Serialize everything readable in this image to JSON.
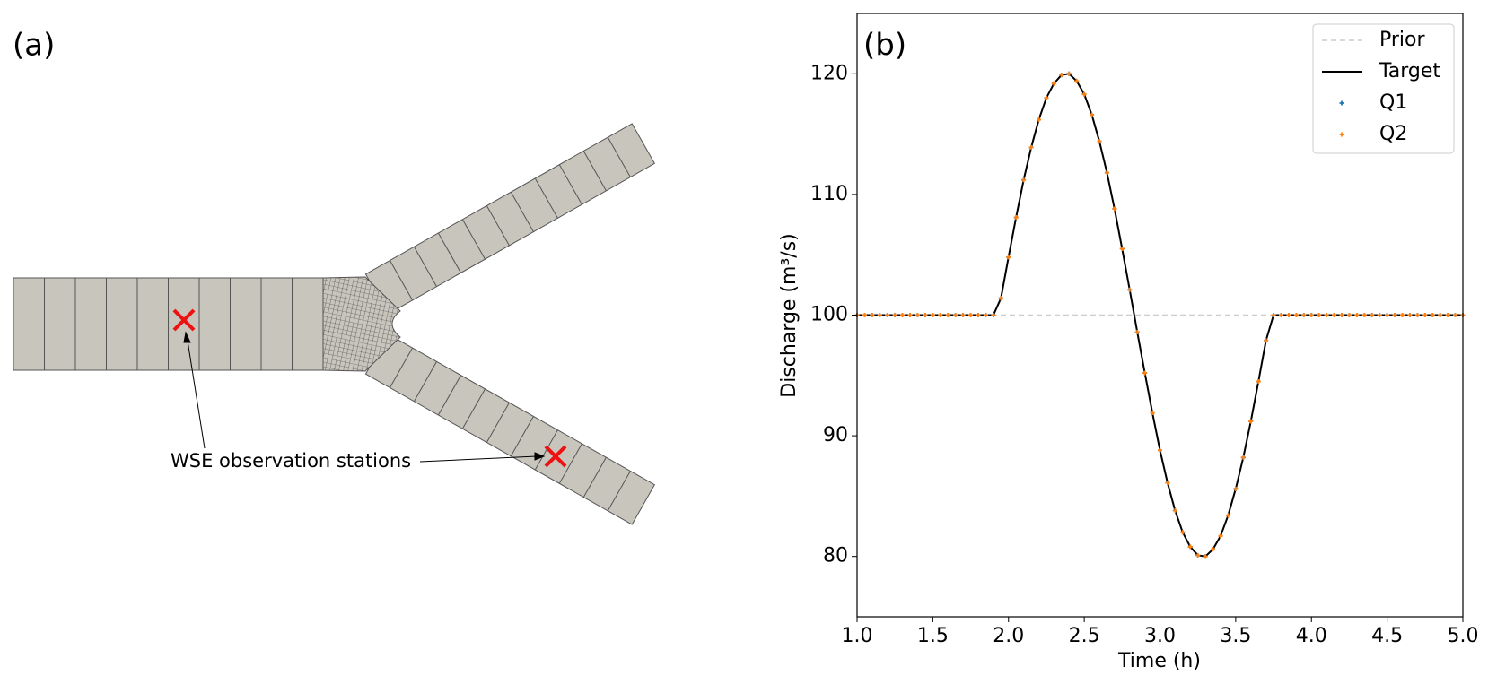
{
  "panel_a": {
    "label": "(a)",
    "annotation": "WSE observation stations"
  },
  "chart_data": {
    "type": "line",
    "panel_label": "(b)",
    "x_label": "Time (h)",
    "y_label": "Discharge (m³/s)",
    "x": [
      1,
      1.05,
      1.1,
      1.15,
      1.2,
      1.25,
      1.3,
      1.35,
      1.4,
      1.45,
      1.5,
      1.55,
      1.6,
      1.65,
      1.7,
      1.75,
      1.8,
      1.85,
      1.9,
      1.95,
      2,
      2.05,
      2.1,
      2.15,
      2.2,
      2.25,
      2.3,
      2.35,
      2.4,
      2.45,
      2.5,
      2.55,
      2.6,
      2.65,
      2.7,
      2.75,
      2.8,
      2.85,
      2.9,
      2.95,
      3,
      3.05,
      3.1,
      3.15,
      3.2,
      3.25,
      3.3,
      3.35,
      3.4,
      3.45,
      3.5,
      3.55,
      3.6,
      3.65,
      3.7,
      3.75,
      3.8,
      3.85,
      3.9,
      3.95,
      4,
      4.05,
      4.1,
      4.15,
      4.2,
      4.25,
      4.3,
      4.35,
      4.4,
      4.45,
      4.5,
      4.55,
      4.6,
      4.65,
      4.7,
      4.75,
      4.8,
      4.85,
      4.9,
      4.95,
      5
    ],
    "series": [
      {
        "name": "Prior",
        "color": "#cccccc",
        "mode": "line",
        "dashed": true,
        "values": [
          100,
          100,
          100,
          100,
          100,
          100,
          100,
          100,
          100,
          100,
          100,
          100,
          100,
          100,
          100,
          100,
          100,
          100,
          100,
          100,
          100,
          100,
          100,
          100,
          100,
          100,
          100,
          100,
          100,
          100,
          100,
          100,
          100,
          100,
          100,
          100,
          100,
          100,
          100,
          100,
          100,
          100,
          100,
          100,
          100,
          100,
          100,
          100,
          100,
          100,
          100,
          100,
          100,
          100,
          100,
          100,
          100,
          100,
          100,
          100,
          100,
          100,
          100,
          100,
          100,
          100,
          100,
          100,
          100,
          100,
          100,
          100,
          100,
          100,
          100,
          100,
          100,
          100,
          100,
          100,
          100
        ]
      },
      {
        "name": "Target",
        "color": "#000000",
        "mode": "line",
        "dashed": false,
        "values": [
          100,
          100,
          100,
          100,
          100,
          100,
          100,
          100,
          100,
          100,
          100,
          100,
          100,
          100,
          100,
          100,
          100,
          100,
          100,
          101.4,
          104.8,
          108.1,
          111.2,
          113.9,
          116.2,
          118,
          119.2,
          119.9,
          120,
          119.4,
          118.3,
          116.6,
          114.4,
          111.8,
          108.8,
          105.5,
          102.1,
          98.6,
          95.2,
          91.9,
          88.8,
          86.1,
          83.8,
          82,
          80.8,
          80.1,
          80,
          80.6,
          81.7,
          83.4,
          85.6,
          88.2,
          91.2,
          94.5,
          97.9,
          100,
          100,
          100,
          100,
          100,
          100,
          100,
          100,
          100,
          100,
          100,
          100,
          100,
          100,
          100,
          100,
          100,
          100,
          100,
          100,
          100,
          100,
          100,
          100,
          100,
          100
        ]
      },
      {
        "name": "Q1",
        "color": "#1f77b4",
        "mode": "markers",
        "dashed": false,
        "values": [
          100,
          100,
          100,
          100,
          100,
          100,
          100,
          100,
          100,
          100,
          100,
          100,
          100,
          100,
          100,
          100,
          100,
          100,
          100,
          101.4,
          104.8,
          108.1,
          111.2,
          113.9,
          116.2,
          118,
          119.2,
          119.9,
          120,
          119.4,
          118.3,
          116.6,
          114.4,
          111.8,
          108.8,
          105.5,
          102.1,
          98.6,
          95.2,
          91.9,
          88.8,
          86.1,
          83.8,
          82,
          80.8,
          80.1,
          80,
          80.6,
          81.7,
          83.4,
          85.6,
          88.2,
          91.2,
          94.5,
          97.9,
          100,
          100,
          100,
          100,
          100,
          100,
          100,
          100,
          100,
          100,
          100,
          100,
          100,
          100,
          100,
          100,
          100,
          100,
          100,
          100,
          100,
          100,
          100,
          100,
          100,
          100
        ]
      },
      {
        "name": "Q2",
        "color": "#ff7f0e",
        "mode": "markers",
        "dashed": false,
        "values": [
          100,
          100,
          100,
          100,
          100,
          100,
          100,
          100,
          100,
          100,
          100,
          100,
          100,
          100,
          100,
          100,
          100,
          100,
          100,
          101.4,
          104.8,
          108.1,
          111.2,
          113.9,
          116.2,
          118,
          119.2,
          119.9,
          120,
          119.4,
          118.3,
          116.6,
          114.4,
          111.8,
          108.8,
          105.5,
          102.1,
          98.6,
          95.2,
          91.9,
          88.8,
          86.1,
          83.8,
          82,
          80.8,
          80.1,
          80,
          80.6,
          81.7,
          83.4,
          85.6,
          88.2,
          91.2,
          94.5,
          97.9,
          100,
          100,
          100,
          100,
          100,
          100,
          100,
          100,
          100,
          100,
          100,
          100,
          100,
          100,
          100,
          100,
          100,
          100,
          100,
          100,
          100,
          100,
          100,
          100,
          100,
          100
        ]
      }
    ],
    "xlim": [
      1,
      5
    ],
    "ylim": [
      75,
      125
    ],
    "xticks": [
      {
        "value": 1,
        "label": "1.0"
      },
      1.5,
      {
        "value": 2,
        "label": "2.0"
      },
      2.5,
      {
        "value": 3,
        "label": "3.0"
      },
      3.5,
      {
        "value": 4,
        "label": "4.0"
      },
      4.5,
      {
        "value": 5,
        "label": "5.0"
      }
    ],
    "yticks": [
      80,
      90,
      100,
      110,
      120
    ],
    "grid": false,
    "legend": "upper right"
  }
}
